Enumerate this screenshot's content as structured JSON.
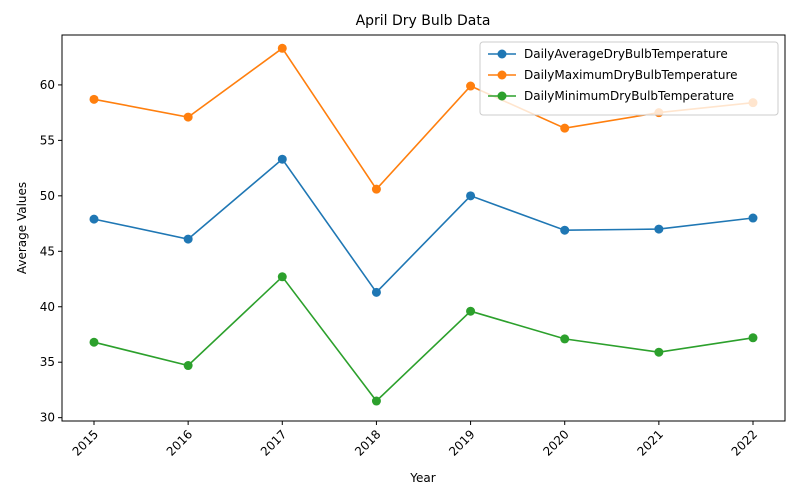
{
  "chart_data": {
    "type": "line",
    "title": "April Dry Bulb Data",
    "xlabel": "Year",
    "ylabel": "Average Values",
    "x": [
      "2015",
      "2016",
      "2017",
      "2018",
      "2019",
      "2020",
      "2021",
      "2022"
    ],
    "yticks": [
      30,
      35,
      40,
      45,
      50,
      55,
      60
    ],
    "ylim": [
      29.7,
      64.5
    ],
    "grid": false,
    "legend_position": "top-right",
    "series": [
      {
        "name": "DailyAverageDryBulbTemperature",
        "color": "#1f77b4",
        "values": [
          47.9,
          46.1,
          53.3,
          41.3,
          50.0,
          46.9,
          47.0,
          48.0
        ]
      },
      {
        "name": "DailyMaximumDryBulbTemperature",
        "color": "#ff7f0e",
        "values": [
          58.7,
          57.1,
          63.3,
          50.6,
          59.9,
          56.1,
          57.5,
          58.4
        ]
      },
      {
        "name": "DailyMinimumDryBulbTemperature",
        "color": "#2ca02c",
        "values": [
          36.8,
          34.7,
          42.7,
          31.5,
          39.6,
          37.1,
          35.9,
          37.2
        ]
      }
    ]
  }
}
